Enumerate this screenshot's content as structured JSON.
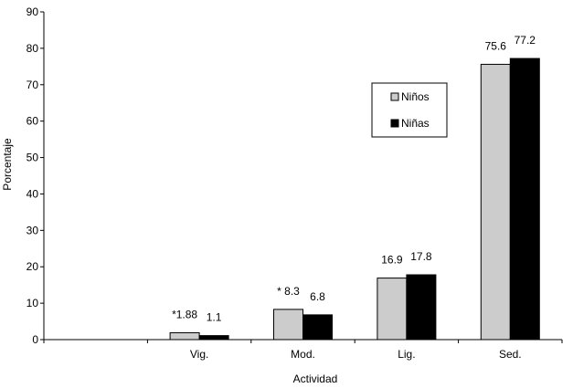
{
  "chart_data": {
    "type": "bar",
    "categories": [
      "",
      "Vig.",
      "Mod.",
      "Lig.",
      "Sed."
    ],
    "series": [
      {
        "name": "Niños",
        "values": [
          null,
          1.88,
          8.3,
          16.9,
          75.6
        ],
        "labels": [
          "",
          "*1.88",
          "* 8.3",
          "16.9",
          "75.6"
        ],
        "color": "#cccccc"
      },
      {
        "name": "Niñas",
        "values": [
          null,
          1.1,
          6.8,
          17.8,
          77.2
        ],
        "labels": [
          "",
          "1.1",
          "6.8",
          "17.8",
          "77.2"
        ],
        "color": "#000000"
      }
    ],
    "xlabel": "Actividad",
    "ylabel": "Porcentaje",
    "ylim": [
      0,
      90
    ],
    "yticks": [
      0,
      10,
      20,
      30,
      40,
      50,
      60,
      70,
      80,
      90
    ],
    "grid": false,
    "legend_position": "center-right"
  }
}
